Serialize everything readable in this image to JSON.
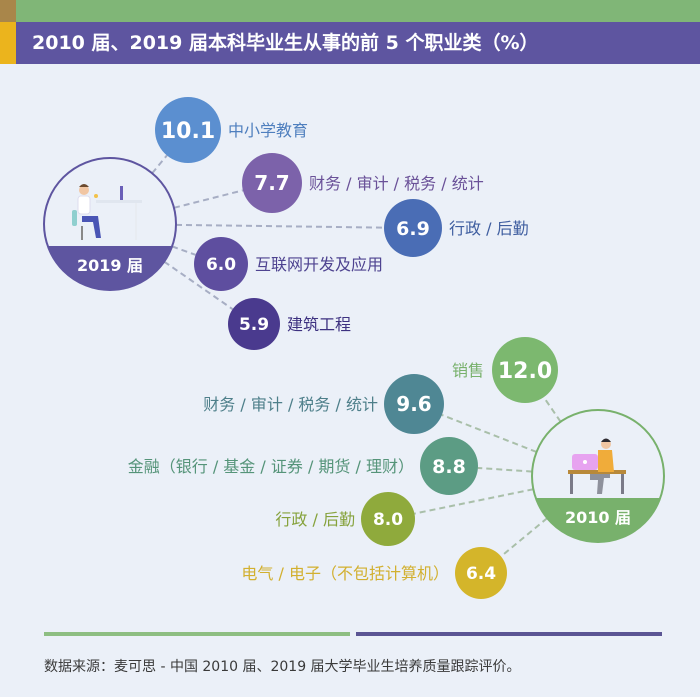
{
  "title": "2010 届、2019 届本科毕业生从事的前 5 个职业类（%）",
  "source": "数据来源：麦可思 - 中国 2010 届、2019 届大学毕业生培养质量跟踪评价。",
  "colors": {
    "top_green": "#80b677",
    "title_purple": "#5e55a0",
    "accent_yellow": "#ebb41d",
    "background": "#ebf0f8"
  },
  "chart_data": {
    "type": "bubble",
    "title": "2010 届、2019 届本科毕业生从事的前 5 个职业类（%）",
    "unit": "%",
    "groups": [
      {
        "name": "2019 届",
        "icon": "office-worker-at-desk-icon",
        "color": "#5e55a0",
        "items": [
          {
            "label": "中小学教育",
            "value": 10.1,
            "color": "#5b8fd0",
            "text_color": "#4f7fbe"
          },
          {
            "label": "财务 / 审计 / 税务 / 统计",
            "value": 7.7,
            "color": "#7c62aa",
            "text_color": "#6a5198"
          },
          {
            "label": "行政 / 后勤",
            "value": 6.9,
            "color": "#4a6db5",
            "text_color": "#3f5ea0"
          },
          {
            "label": "互联网开发及应用",
            "value": 6.0,
            "color": "#5e4e9f",
            "text_color": "#4e4390"
          },
          {
            "label": "建筑工程",
            "value": 5.9,
            "color": "#4a3a8e",
            "text_color": "#3d3180"
          }
        ]
      },
      {
        "name": "2010 届",
        "icon": "worker-with-laptop-icon",
        "color": "#78b16c",
        "items": [
          {
            "label": "销售",
            "value": 12.0,
            "color": "#7cb86f",
            "text_color": "#78b16c"
          },
          {
            "label": "财务 / 审计 / 税务 / 统计",
            "value": 9.6,
            "color": "#4f8794",
            "text_color": "#4e7f8a"
          },
          {
            "label": "金融（银行 / 基金 / 证券 / 期货 / 理财）",
            "value": 8.8,
            "color": "#5c9c84",
            "text_color": "#559479"
          },
          {
            "label": "行政 / 后勤",
            "value": 8.0,
            "color": "#8faa3c",
            "text_color": "#86a23c"
          },
          {
            "label": "电气 / 电子（不包括计算机）",
            "value": 6.4,
            "color": "#d4b52a",
            "text_color": "#d2b030"
          }
        ]
      }
    ]
  }
}
